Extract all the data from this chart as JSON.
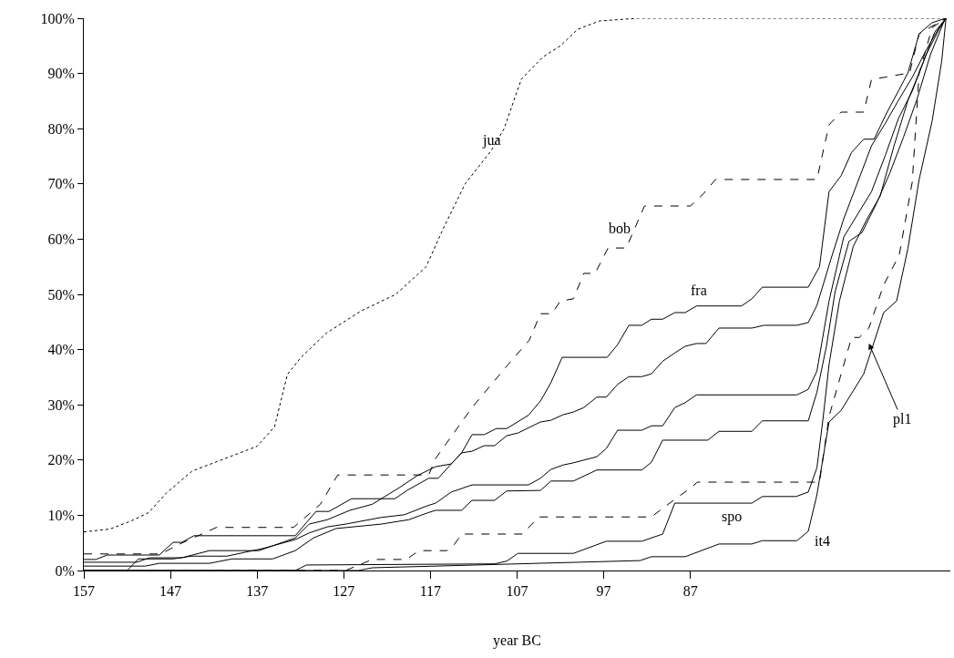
{
  "chart_data": {
    "type": "line",
    "xlabel": "year BC",
    "xlim": [
      157,
      57
    ],
    "xticks": [
      157,
      147,
      137,
      127,
      117,
      107,
      97,
      87
    ],
    "ylim": [
      0,
      100
    ],
    "yticks": [
      {
        "value": 0,
        "label": "0%"
      },
      {
        "value": 10,
        "label": "10%"
      },
      {
        "value": 20,
        "label": "20%"
      },
      {
        "value": 30,
        "label": "30%"
      },
      {
        "value": 40,
        "label": "40%"
      },
      {
        "value": 50,
        "label": "50%"
      },
      {
        "value": 60,
        "label": "60%"
      },
      {
        "value": 70,
        "label": "70%"
      },
      {
        "value": 80,
        "label": "80%"
      },
      {
        "value": 90,
        "label": "90%"
      },
      {
        "value": 100,
        "label": "100%"
      }
    ],
    "marker": "none",
    "annotations": [
      {
        "text": "jua",
        "x": 109.9,
        "y": 77.9
      },
      "bob",
      "fra",
      "spo",
      "it4",
      {
        "text": "pl1",
        "x": 66.4,
        "y": 41.1
      }
    ],
    "series": [
      {
        "color": "#000000",
        "line_style": "dotted",
        "x": [
          157,
          154,
          151.5,
          149.5,
          147.5,
          144.5,
          142,
          139.5,
          137,
          135,
          133.5,
          132,
          129,
          125,
          121,
          117.5,
          115.5,
          113,
          110,
          108.5,
          106.5,
          104,
          102,
          100,
          97.5,
          93,
          57.5
        ],
        "values": [
          7,
          7.5,
          9,
          10.5,
          14,
          18,
          19.5,
          21,
          22.5,
          26,
          35.5,
          38.5,
          43,
          47,
          50,
          55,
          62,
          70,
          76,
          80,
          89,
          93,
          95,
          98,
          99.5,
          100,
          100
        ]
      },
      {
        "color": "#000000",
        "line_style": "dashed",
        "x": [
          157,
          148.1,
          146.2,
          141.7,
          132.8,
          129.7,
          127.7,
          117.2,
          116.4,
          112.2,
          108.2,
          105.6,
          104.3,
          103,
          102,
          100.5,
          99.3,
          98,
          96.5,
          94.4,
          92.3,
          87,
          85.5,
          84.1,
          72.4,
          71,
          69.6,
          67,
          66.1,
          61.7,
          60.6,
          57.5
        ],
        "values": [
          3,
          3,
          4.6,
          7.8,
          7.8,
          12,
          17.3,
          17.3,
          20.3,
          29.5,
          37,
          41.7,
          46.5,
          46.5,
          48.8,
          49.2,
          53.8,
          53.8,
          58.4,
          58.4,
          66,
          66,
          68.2,
          70.8,
          70.8,
          80.7,
          83,
          83,
          88.9,
          90.1,
          97.2,
          100
        ]
      },
      {
        "color": "#000000",
        "line_style": "solid",
        "x": [
          157,
          155.6,
          154.3,
          148.3,
          146.7,
          145.7,
          144.3,
          132.6,
          131.3,
          130.2,
          128.7,
          126.1,
          121.1,
          119.7,
          117.2,
          116.1,
          114.6,
          113.4,
          112.2,
          110.8,
          109.4,
          108.2,
          105.7,
          104.3,
          103.1,
          101.8,
          96.6,
          95.4,
          94.1,
          92.6,
          91.5,
          90.2,
          88.8,
          87.6,
          86.3,
          81.1,
          79.9,
          78.7,
          73.4,
          72.1,
          71,
          69.6,
          68.4,
          67,
          65.8,
          64.3,
          63,
          61.9,
          60.6,
          59.1,
          57.5
        ],
        "values": [
          2,
          2,
          2.8,
          2.8,
          5.1,
          5.1,
          6.3,
          6.3,
          8.7,
          10.7,
          10.7,
          13,
          13,
          14.5,
          16.7,
          16.7,
          19.3,
          21.3,
          24.6,
          24.6,
          25.7,
          25.7,
          28.1,
          30.7,
          34,
          38.6,
          38.6,
          40.9,
          44.4,
          44.4,
          45.5,
          45.5,
          46.7,
          46.7,
          47.9,
          47.9,
          49.2,
          51.3,
          51.3,
          55,
          68.6,
          71.5,
          75.7,
          78.1,
          78.1,
          83,
          86.8,
          90.1,
          97.2,
          99.2,
          100
        ]
      },
      {
        "color": "#000000",
        "line_style": "solid",
        "x": [
          157,
          150.9,
          149.4,
          145.7,
          142.5,
          136.8,
          132.6,
          131,
          128.9,
          126.3,
          123.7,
          120.6,
          118.5,
          116.4,
          114.6,
          113.4,
          112.2,
          110.8,
          109.6,
          108.2,
          106.9,
          104.3,
          103.1,
          101.7,
          100.5,
          99.3,
          97.8,
          96.7,
          95.4,
          94.1,
          92.6,
          91.5,
          90.2,
          88.8,
          87.6,
          86.3,
          85.2,
          83.7,
          79.9,
          78.5,
          74.7,
          73.4,
          72.4,
          70.8,
          69.3,
          67.7,
          66.1,
          64.5,
          63,
          61.4,
          59.8,
          58.3,
          57.5
        ],
        "values": [
          1.5,
          1.5,
          2.3,
          2.3,
          3.6,
          3.6,
          5.9,
          8.4,
          9.2,
          10.9,
          12,
          15,
          17.2,
          18.8,
          19.3,
          21.3,
          21.6,
          22.6,
          22.6,
          24.4,
          24.9,
          26.9,
          27.2,
          28.2,
          28.7,
          29.5,
          31.4,
          31.4,
          33.7,
          35.1,
          35.1,
          35.6,
          37.9,
          39.4,
          40.6,
          41.1,
          41.1,
          43.9,
          43.9,
          44.4,
          44.4,
          44.9,
          48,
          56.3,
          63.7,
          70.3,
          76.9,
          81,
          85.1,
          89.3,
          94.2,
          98.3,
          100
        ]
      },
      {
        "color": "#000000",
        "line_style": "solid",
        "x": [
          157,
          152,
          150.7,
          146.7,
          144.6,
          140.5,
          136.3,
          132.6,
          131,
          128.9,
          126.8,
          122.7,
          120,
          117.4,
          116.4,
          114.6,
          112.2,
          105.7,
          104.3,
          103.1,
          101.7,
          100.5,
          97.8,
          96.7,
          95.4,
          92.6,
          91.5,
          90.2,
          88.8,
          87.6,
          86.3,
          74.7,
          73.4,
          72.4,
          71,
          69.3,
          67.7,
          66.1,
          64.5,
          63,
          61.4,
          59.8,
          58.3,
          57.5
        ],
        "values": [
          0,
          0,
          2.1,
          2.1,
          2.6,
          2.6,
          4,
          5.6,
          6.8,
          7.9,
          8.4,
          9.6,
          10.1,
          11.7,
          12.2,
          14.2,
          15.5,
          15.5,
          16.7,
          18.3,
          19.1,
          19.5,
          20.6,
          22.1,
          25.4,
          25.4,
          26.2,
          26.2,
          29.5,
          30.4,
          31.8,
          31.8,
          32.8,
          36.1,
          48.8,
          60.4,
          64.5,
          68.6,
          75.2,
          81.8,
          86.8,
          93.4,
          98,
          100
        ]
      },
      {
        "color": "#000000",
        "line_style": "solid",
        "x": [
          157,
          149.9,
          148.3,
          142.5,
          139.9,
          135.2,
          132.6,
          130.5,
          127.9,
          122.7,
          119.5,
          117.4,
          116.4,
          113.4,
          112.2,
          109.6,
          108.2,
          104.3,
          103.1,
          100.5,
          97.8,
          92.6,
          91.5,
          90.2,
          85,
          83.7,
          79.9,
          78.7,
          73.4,
          72.4,
          71.3,
          70.3,
          68.7,
          67.2,
          65.6,
          64,
          62.4,
          60.9,
          59.3,
          57.8,
          57.5
        ],
        "values": [
          0.8,
          0.8,
          1.3,
          1.3,
          2.1,
          2.1,
          3.6,
          5.9,
          7.6,
          8.4,
          9.2,
          10.4,
          10.9,
          10.9,
          12.7,
          12.7,
          14.4,
          14.5,
          16.2,
          16.2,
          18.2,
          18.2,
          19.6,
          23.6,
          23.6,
          25.2,
          25.2,
          27.1,
          27.1,
          32.3,
          40.6,
          50.5,
          59.6,
          61.2,
          66.2,
          71.9,
          78.5,
          85.1,
          93.4,
          99.2,
          100
        ]
      },
      {
        "color": "#000000",
        "line_style": "solid",
        "x": [
          157,
          132.6,
          131.3,
          109.6,
          108.2,
          106.9,
          100.5,
          96.7,
          92.6,
          90.2,
          88.8,
          79.9,
          78.7,
          74.8,
          73.4,
          72.4,
          71.7,
          71,
          69.8,
          68.2,
          66.6,
          65.1,
          63.5,
          61.9,
          60.4,
          58.8,
          57.5
        ],
        "values": [
          0,
          0,
          1,
          1.2,
          1.7,
          3.1,
          3.1,
          5.3,
          5.3,
          6.6,
          12.2,
          12.2,
          13.4,
          13.4,
          14.2,
          18.6,
          27.4,
          37.3,
          48.8,
          58.7,
          63.7,
          67.8,
          76.9,
          85.1,
          90.9,
          97.5,
          100
        ]
      },
      {
        "color": "#000000",
        "line_style": "solid",
        "x": [
          157,
          125.3,
          123.7,
          116.4,
          92.8,
          91.5,
          87.6,
          83.7,
          79.9,
          78.7,
          74.7,
          73.4,
          72.4,
          71,
          69.6,
          67,
          64.7,
          63.2,
          61.9,
          60.6,
          59.1,
          58,
          57.5
        ],
        "values": [
          0,
          0,
          0.5,
          0.8,
          1.8,
          2.5,
          2.5,
          4.8,
          4.8,
          5.4,
          5.4,
          7.1,
          13.7,
          26.9,
          29,
          35.6,
          46.7,
          48.8,
          58.3,
          70.8,
          81.4,
          92.2,
          100
        ]
      },
      {
        "color": "#000000",
        "line_style": "dashed",
        "x": [
          157,
          126.8,
          123.7,
          119.8,
          118.3,
          115.1,
          114.3,
          113.4,
          106.4,
          104.5,
          91.5,
          88.8,
          87,
          86.2,
          72.1,
          71,
          68.4,
          67.5,
          66.4,
          64.7,
          62.9,
          61.4,
          60.6,
          59.1,
          57.5
        ],
        "values": [
          0,
          0,
          2,
          2,
          3.6,
          3.6,
          4.6,
          6.6,
          6.6,
          9.7,
          9.7,
          12.9,
          14.9,
          16,
          16,
          27.9,
          42.2,
          42.2,
          43.9,
          51.7,
          57.1,
          70.3,
          90.1,
          98.3,
          100
        ]
      }
    ]
  }
}
